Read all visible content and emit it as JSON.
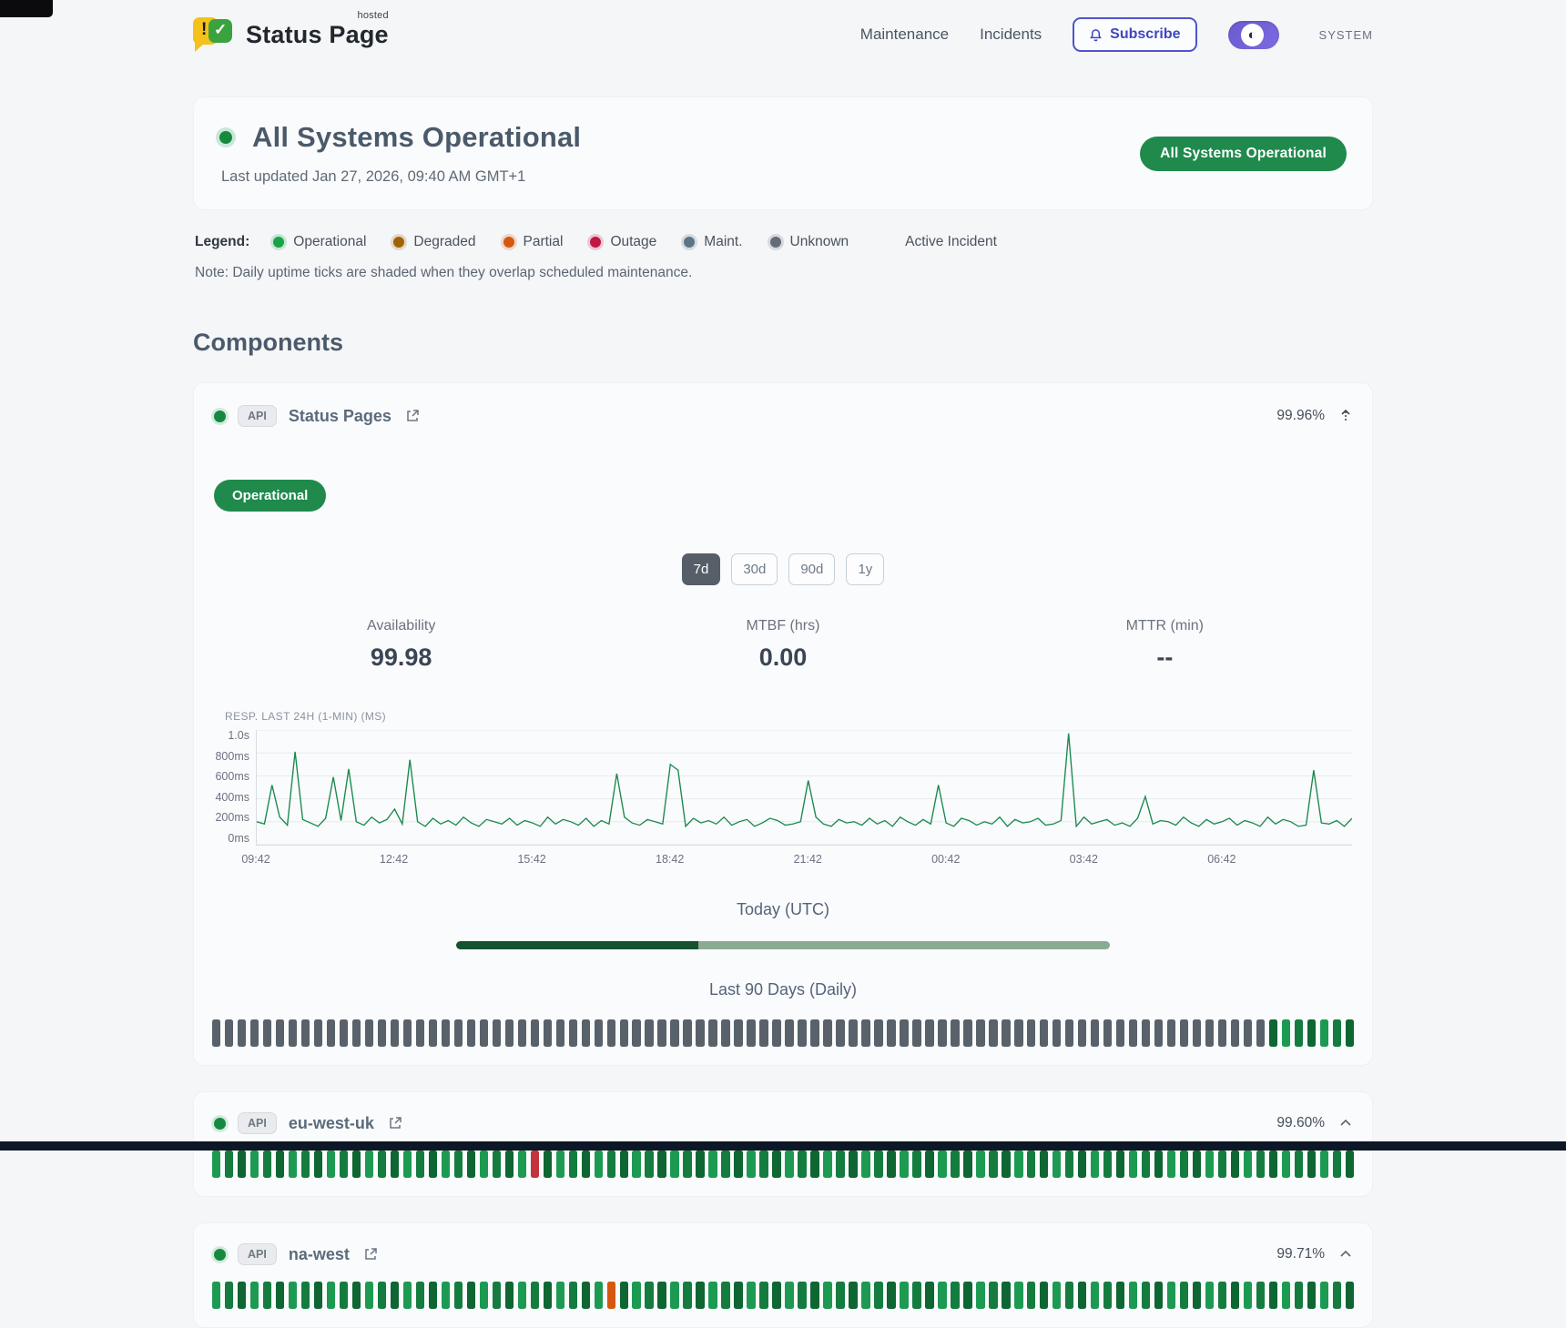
{
  "header": {
    "brand_name": "Status Page",
    "brand_superscript": "hosted",
    "nav": [
      {
        "label": "Maintenance"
      },
      {
        "label": "Incidents"
      }
    ],
    "subscribe_label": "Subscribe",
    "theme_toggle_label": "SYSTEM",
    "accent_color": "#4f55c7"
  },
  "hero": {
    "title": "All Systems Operational",
    "last_updated": "Last updated Jan 27, 2026, 09:40 AM GMT+1",
    "badge": "All Systems Operational",
    "status_color": "#1f8a4c"
  },
  "legend": {
    "label": "Legend:",
    "items": [
      {
        "label": "Operational",
        "color": "#16a34a"
      },
      {
        "label": "Degraded",
        "color": "#a16207"
      },
      {
        "label": "Partial",
        "color": "#d4590f"
      },
      {
        "label": "Outage",
        "color": "#c01744"
      },
      {
        "label": "Maint.",
        "color": "#5b7586"
      },
      {
        "label": "Unknown",
        "color": "#636b76"
      }
    ],
    "active_incident_label": "Active Incident",
    "note": "Note: Daily uptime ticks are shaded when they overlap scheduled maintenance."
  },
  "components": {
    "title": "Components",
    "expanded": {
      "tag": "API",
      "name": "Status Pages",
      "uptime": "99.96%",
      "status_label": "Operational",
      "ranges": [
        "7d",
        "30d",
        "90d",
        "1y"
      ],
      "active_range": "7d",
      "metrics": [
        {
          "label": "Availability",
          "value": "99.98"
        },
        {
          "label": "MTBF (hrs)",
          "value": "0.00"
        },
        {
          "label": "MTTR (min)",
          "value": "--"
        }
      ],
      "today_label": "Today (UTC)",
      "today_progress_pct": 37,
      "history_label": "Last 90 Days (Daily)",
      "ticks": "uuuuuuuuuuuuuuuuuuuuuuuuuuuuuuuuuuuuuuuuuuuuuuuuuuuuuuuuuuuuuuuuuuuuuuuuuuuuuuuuuuuooooooo"
    },
    "collapsed": [
      {
        "tag": "API",
        "name": "eu-west-uk",
        "uptime": "99.60%",
        "ticks": "oooooooooooooooooooooooooxoooooooooooooooooooooooooooooooooooooooooooooooooooooooooooooooo"
      },
      {
        "tag": "API",
        "name": "na-west",
        "uptime": "99.71%",
        "ticks": "ooooooooooooooooooooooooooooooopoooooooooooooooooooooooooooooooooooooooooooooooooooooooooo"
      }
    ]
  },
  "chart_data": {
    "type": "line",
    "title": "RESP. LAST 24H (1-MIN) (MS)",
    "line_color": "#1a8a4f",
    "ylim": [
      0,
      1000
    ],
    "unit": "ms",
    "y_tick_labels": [
      "1.0s",
      "800ms",
      "600ms",
      "400ms",
      "200ms",
      "0ms"
    ],
    "x_tick_labels": [
      "09:42",
      "12:42",
      "15:42",
      "18:42",
      "21:42",
      "00:42",
      "03:42",
      "06:42"
    ],
    "grid": true,
    "legend_position": "none",
    "values_ms": [
      200,
      180,
      520,
      240,
      170,
      810,
      220,
      190,
      160,
      230,
      590,
      210,
      660,
      200,
      170,
      240,
      190,
      220,
      310,
      180,
      740,
      200,
      160,
      230,
      180,
      210,
      170,
      240,
      190,
      160,
      220,
      200,
      180,
      230,
      170,
      210,
      190,
      160,
      240,
      180,
      220,
      200,
      170,
      230,
      160,
      210,
      180,
      620,
      240,
      190,
      170,
      220,
      200,
      180,
      700,
      650,
      160,
      230,
      190,
      210,
      180,
      240,
      170,
      200,
      220,
      160,
      190,
      230,
      210,
      170,
      180,
      200,
      560,
      240,
      180,
      160,
      220,
      190,
      200,
      170,
      230,
      180,
      210,
      160,
      240,
      200,
      170,
      220,
      180,
      520,
      190,
      160,
      230,
      210,
      170,
      200,
      180,
      240,
      160,
      220,
      190,
      200,
      230,
      170,
      180,
      210,
      970,
      160,
      240,
      180,
      200,
      220,
      170,
      190,
      160,
      230,
      420,
      180,
      210,
      200,
      170,
      240,
      190,
      160,
      220,
      180,
      200,
      230,
      170,
      210,
      190,
      160,
      240,
      180,
      220,
      200,
      160,
      170,
      650,
      190,
      180,
      210,
      160,
      230
    ]
  }
}
